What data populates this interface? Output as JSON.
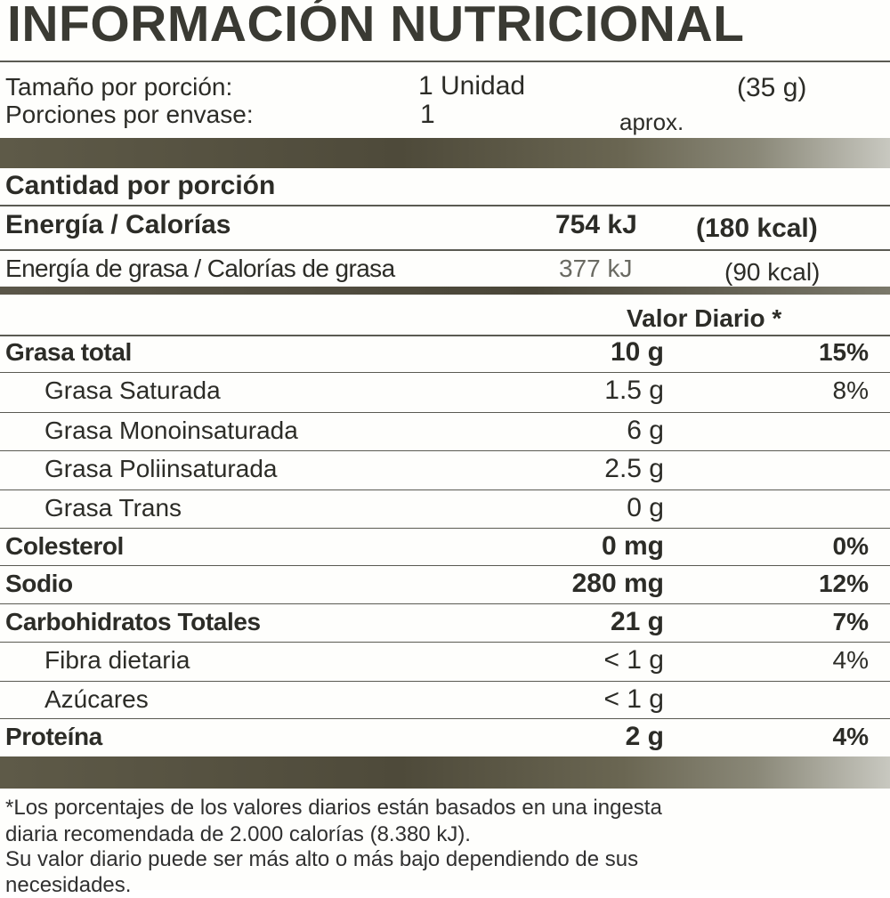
{
  "title": "INFORMACIÓN NUTRICIONAL",
  "serving": {
    "size_label": "Tamaño por porción:",
    "size_value": "1 Unidad",
    "size_weight": "(35 g)",
    "per_package_label": "Porciones por envase:",
    "per_package_value": "1",
    "per_package_note": "aprox."
  },
  "amount_header": "Cantidad por porción",
  "energy": {
    "label": "Energía / Calorías",
    "kj": "754 kJ",
    "kcal": "(180 kcal)"
  },
  "fat_energy": {
    "label": "Energía de grasa / Calorías de grasa",
    "kj": "377 kJ",
    "kcal": "(90 kcal)"
  },
  "daily_value_header": "Valor Diario *",
  "nutrients": [
    {
      "label": "Grasa total",
      "amount": "10 g",
      "dv": "15%",
      "bold": true,
      "indent": false
    },
    {
      "label": "Grasa Saturada",
      "amount": "1.5 g",
      "dv": "8%",
      "bold": false,
      "indent": true
    },
    {
      "label": "Grasa Monoinsaturada",
      "amount": "6 g",
      "dv": "",
      "bold": false,
      "indent": true
    },
    {
      "label": "Grasa Poliinsaturada",
      "amount": "2.5 g",
      "dv": "",
      "bold": false,
      "indent": true
    },
    {
      "label": "Grasa Trans",
      "amount": "0 g",
      "dv": "",
      "bold": false,
      "indent": true
    },
    {
      "label": "Colesterol",
      "amount": "0 mg",
      "dv": "0%",
      "bold": true,
      "indent": false
    },
    {
      "label": "Sodio",
      "amount": "280 mg",
      "dv": "12%",
      "bold": true,
      "indent": false
    },
    {
      "label": "Carbohidratos Totales",
      "amount": "21 g",
      "dv": "7%",
      "bold": true,
      "indent": false
    },
    {
      "label": "Fibra dietaria",
      "amount": "< 1 g",
      "dv": "4%",
      "bold": false,
      "indent": true
    },
    {
      "label": "Azúcares",
      "amount": "< 1 g",
      "dv": "",
      "bold": false,
      "indent": true
    },
    {
      "label": "Proteína",
      "amount": "2 g",
      "dv": "4%",
      "bold": true,
      "indent": false
    }
  ],
  "footnote": {
    "line1": "*Los porcentajes de los valores diarios están basados en una ingesta",
    "line2": "diaria recomendada de 2.000 calorías (8.380 kJ).",
    "line3": "Su valor diario puede ser más alto o más bajo dependiendo de sus",
    "line4": "necesidades."
  }
}
